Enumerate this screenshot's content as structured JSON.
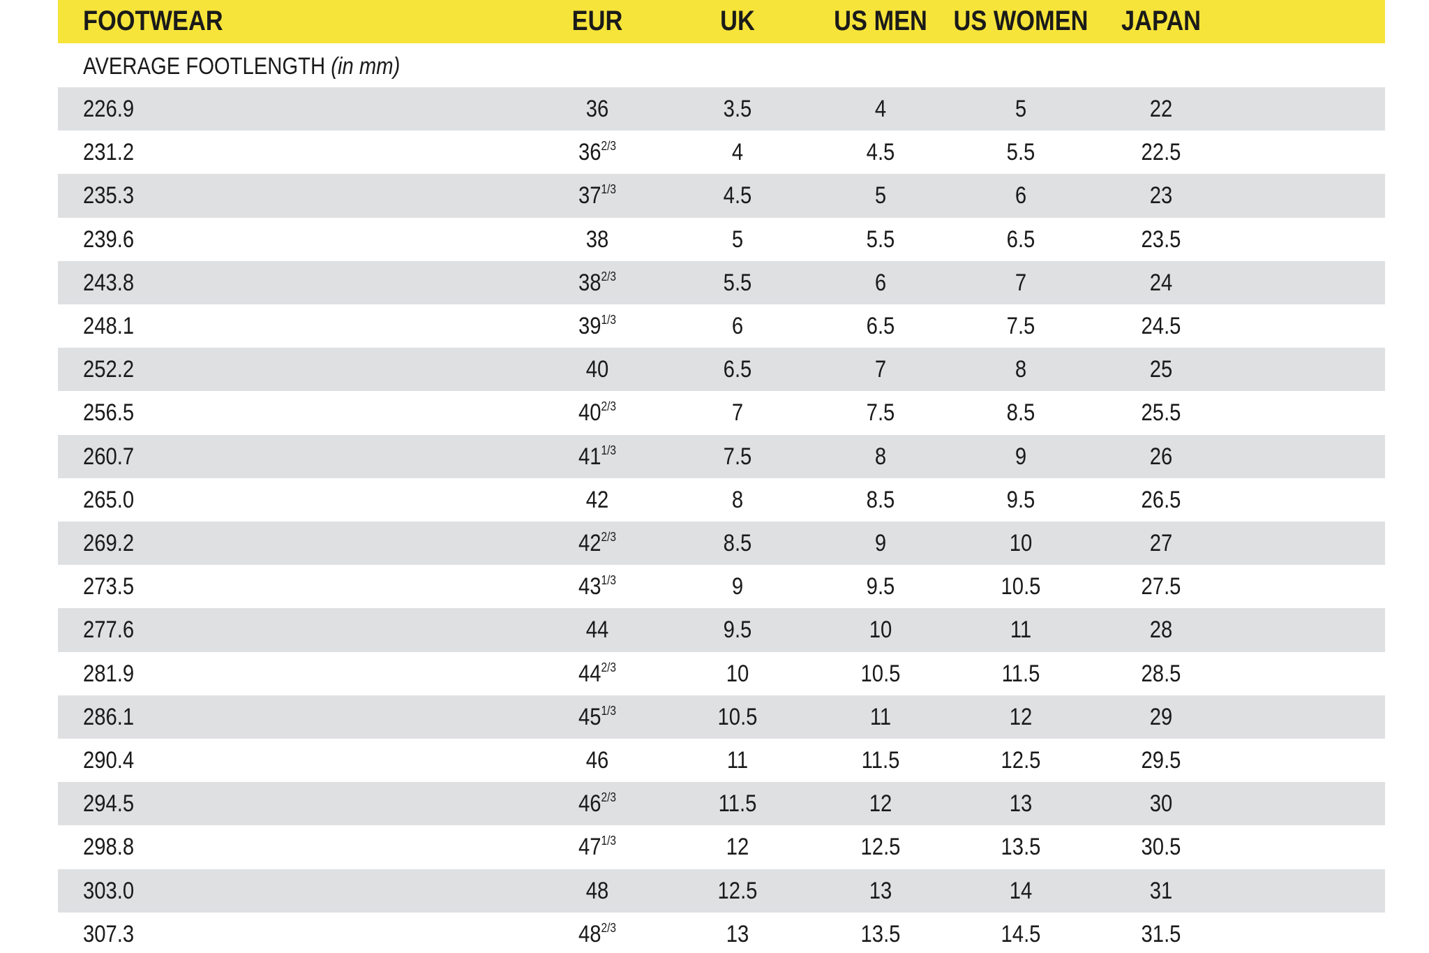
{
  "header": {
    "title": "FOOTWEAR",
    "columns": [
      "EUR",
      "UK",
      "US MEN",
      "US WOMEN",
      "JAPAN"
    ]
  },
  "subheader": {
    "text": "AVERAGE FOOTLENGTH",
    "unit": "(in mm)"
  },
  "rows": [
    {
      "length": "226.9",
      "eur": "36",
      "uk": "3.5",
      "us_men": "4",
      "us_women": "5",
      "japan": "22"
    },
    {
      "length": "231.2",
      "eur": "36",
      "eur_fraction": "2/3",
      "uk": "4",
      "us_men": "4.5",
      "us_women": "5.5",
      "japan": "22.5"
    },
    {
      "length": "235.3",
      "eur": "37",
      "eur_fraction": "1/3",
      "uk": "4.5",
      "us_men": "5",
      "us_women": "6",
      "japan": "23"
    },
    {
      "length": "239.6",
      "eur": "38",
      "uk": "5",
      "us_men": "5.5",
      "us_women": "6.5",
      "japan": "23.5"
    },
    {
      "length": "243.8",
      "eur": "38",
      "eur_fraction": "2/3",
      "uk": "5.5",
      "us_men": "6",
      "us_women": "7",
      "japan": "24"
    },
    {
      "length": "248.1",
      "eur": "39",
      "eur_fraction": "1/3",
      "uk": "6",
      "us_men": "6.5",
      "us_women": "7.5",
      "japan": "24.5"
    },
    {
      "length": "252.2",
      "eur": "40",
      "uk": "6.5",
      "us_men": "7",
      "us_women": "8",
      "japan": "25"
    },
    {
      "length": "256.5",
      "eur": "40",
      "eur_fraction": "2/3",
      "uk": "7",
      "us_men": "7.5",
      "us_women": "8.5",
      "japan": "25.5"
    },
    {
      "length": "260.7",
      "eur": "41",
      "eur_fraction": "1/3",
      "uk": "7.5",
      "us_men": "8",
      "us_women": "9",
      "japan": "26"
    },
    {
      "length": "265.0",
      "eur": "42",
      "uk": "8",
      "us_men": "8.5",
      "us_women": "9.5",
      "japan": "26.5"
    },
    {
      "length": "269.2",
      "eur": "42",
      "eur_fraction": "2/3",
      "uk": "8.5",
      "us_men": "9",
      "us_women": "10",
      "japan": "27"
    },
    {
      "length": "273.5",
      "eur": "43",
      "eur_fraction": "1/3",
      "uk": "9",
      "us_men": "9.5",
      "us_women": "10.5",
      "japan": "27.5"
    },
    {
      "length": "277.6",
      "eur": "44",
      "uk": "9.5",
      "us_men": "10",
      "us_women": "11",
      "japan": "28"
    },
    {
      "length": "281.9",
      "eur": "44",
      "eur_fraction": "2/3",
      "uk": "10",
      "us_men": "10.5",
      "us_women": "11.5",
      "japan": "28.5"
    },
    {
      "length": "286.1",
      "eur": "45",
      "eur_fraction": "1/3",
      "uk": "10.5",
      "us_men": "11",
      "us_women": "12",
      "japan": "29"
    },
    {
      "length": "290.4",
      "eur": "46",
      "uk": "11",
      "us_men": "11.5",
      "us_women": "12.5",
      "japan": "29.5"
    },
    {
      "length": "294.5",
      "eur": "46",
      "eur_fraction": "2/3",
      "uk": "11.5",
      "us_men": "12",
      "us_women": "13",
      "japan": "30"
    },
    {
      "length": "298.8",
      "eur": "47",
      "eur_fraction": "1/3",
      "uk": "12",
      "us_men": "12.5",
      "us_women": "13.5",
      "japan": "30.5"
    },
    {
      "length": "303.0",
      "eur": "48",
      "uk": "12.5",
      "us_men": "13",
      "us_women": "14",
      "japan": "31"
    },
    {
      "length": "307.3",
      "eur": "48",
      "eur_fraction": "2/3",
      "uk": "13",
      "us_men": "13.5",
      "us_women": "14.5",
      "japan": "31.5"
    }
  ]
}
